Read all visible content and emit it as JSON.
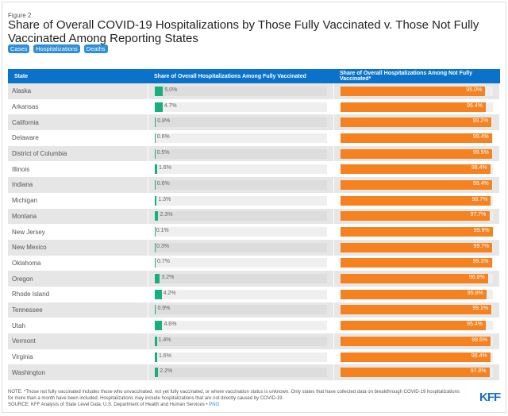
{
  "figure_label": "Figure 2",
  "chart_data": {
    "type": "table",
    "title": "Share of Overall COVID-19 Hospitalizations by Those Fully Vaccinated v. Those Not Fully Vaccinated Among Reporting States",
    "columns": [
      "State",
      "Share of Overall Hospitalizations Among Fully Vaccinated",
      "Share of Overall Hospitalizations Among Not Fully Vaccinated*"
    ],
    "colors": {
      "fully_vaccinated": "#16b07a",
      "not_fully_vaccinated": "#f5821f",
      "header": "#0b72c9"
    },
    "rows": [
      [
        "Alaska",
        5.0,
        95.0
      ],
      [
        "Arkansas",
        4.7,
        95.4
      ],
      [
        "California",
        0.8,
        99.2
      ],
      [
        "Delaware",
        0.6,
        99.4
      ],
      [
        "District of Columbia",
        0.5,
        99.5
      ],
      [
        "Illinois",
        1.6,
        98.4
      ],
      [
        "Indiana",
        0.6,
        99.4
      ],
      [
        "Michigan",
        1.3,
        98.7
      ],
      [
        "Montana",
        2.3,
        97.7
      ],
      [
        "New Jersey",
        0.1,
        99.9
      ],
      [
        "New Mexico",
        0.3,
        99.7
      ],
      [
        "Oklahoma",
        0.7,
        99.3
      ],
      [
        "Oregon",
        3.2,
        96.8
      ],
      [
        "Rhode Island",
        4.2,
        95.8
      ],
      [
        "Tennessee",
        0.9,
        99.1
      ],
      [
        "Utah",
        4.6,
        95.4
      ],
      [
        "Vermont",
        1.4,
        98.6
      ],
      [
        "Virginia",
        1.6,
        98.4
      ],
      [
        "Washington",
        2.2,
        97.8
      ]
    ]
  },
  "tabs": [
    "Cases",
    "Hospitalizations",
    "Deaths"
  ],
  "note": "NOTE: *Those not fully vaccinated includes those who unvaccinated, not yet fully vaccinated, or where vaccination status is unknown. Only states that have collected data on breakthrough COVID-19 hospitalizations for more than a month have been included. Hospitalizations may include hospitalizations that are not directly caused by COVID-19.",
  "source": "SOURCE: KFF Analysis of State Level Data; U.S. Department of Health and Human Services •",
  "png_link": "PNG",
  "logo": "KFF"
}
